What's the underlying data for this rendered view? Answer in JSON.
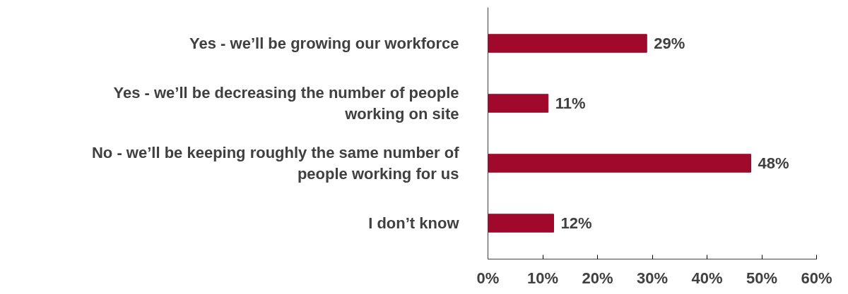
{
  "chart_data": {
    "type": "bar",
    "orientation": "horizontal",
    "categories": [
      "Yes - we’ll be growing our workforce",
      "Yes - we’ll be decreasing the number of people working on site",
      "No - we’ll be keeping roughly the same number of people working for us",
      "I don’t know"
    ],
    "values": [
      29,
      11,
      48,
      12
    ],
    "value_labels": [
      "29%",
      "11%",
      "48%",
      "12%"
    ],
    "color": "#a0082c",
    "xlim": [
      0,
      60
    ],
    "xticks": [
      {
        "value": 0,
        "label": "0%"
      },
      {
        "value": 10,
        "label": "10%"
      },
      {
        "value": 20,
        "label": "20%"
      },
      {
        "value": 30,
        "label": "30%"
      },
      {
        "value": 40,
        "label": "40%"
      },
      {
        "value": 50,
        "label": "50%"
      },
      {
        "value": 60,
        "label": "60%"
      }
    ],
    "grid": false
  }
}
